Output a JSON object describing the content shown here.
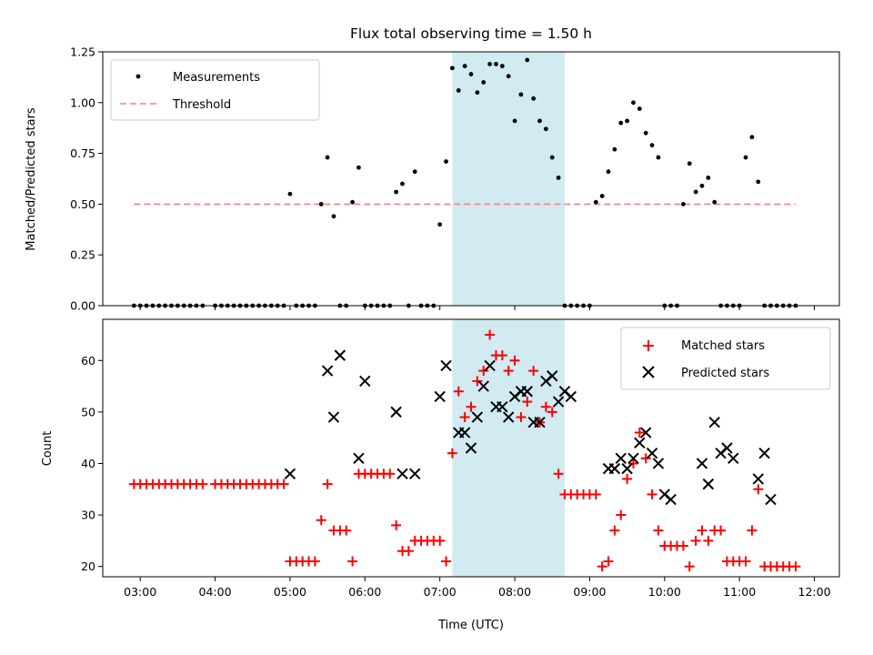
{
  "chart_data": [
    {
      "type": "scatter",
      "title": "Flux total observing time = 1.50 h",
      "xlabel": "",
      "ylabel": "Matched/Predicted stars",
      "ylim": [
        0,
        1.25
      ],
      "yticks": [
        "0.00",
        "0.25",
        "0.50",
        "0.75",
        "1.00",
        "1.25"
      ],
      "legend_position": "top-left",
      "shaded_interval": [
        "07:10",
        "08:40"
      ],
      "shade_color": "#add8e6",
      "threshold": {
        "name": "Threshold",
        "value": 0.5,
        "x_range": [
          "02:55",
          "11:45"
        ],
        "color": "#ff7f7f"
      },
      "series": [
        {
          "name": "Measurements",
          "color": "#000000",
          "x": [
            "02:55",
            "03:00",
            "03:05",
            "03:10",
            "03:15",
            "03:20",
            "03:25",
            "03:30",
            "03:35",
            "03:40",
            "03:45",
            "03:50",
            "04:00",
            "04:05",
            "04:10",
            "04:15",
            "04:20",
            "04:25",
            "04:30",
            "04:35",
            "04:40",
            "04:45",
            "04:50",
            "04:55",
            "05:00",
            "05:05",
            "05:10",
            "05:15",
            "05:20",
            "05:25",
            "05:30",
            "05:35",
            "05:40",
            "05:45",
            "05:50",
            "05:55",
            "06:00",
            "06:05",
            "06:10",
            "06:15",
            "06:20",
            "06:25",
            "06:30",
            "06:35",
            "06:40",
            "06:45",
            "06:50",
            "06:55",
            "07:00",
            "07:05",
            "07:10",
            "07:15",
            "07:20",
            "07:25",
            "07:30",
            "07:35",
            "07:40",
            "07:45",
            "07:50",
            "07:55",
            "08:00",
            "08:05",
            "08:10",
            "08:15",
            "08:20",
            "08:25",
            "08:30",
            "08:35",
            "08:40",
            "08:45",
            "08:50",
            "08:55",
            "09:00",
            "09:05",
            "09:10",
            "09:15",
            "09:20",
            "09:25",
            "09:30",
            "09:35",
            "09:40",
            "09:45",
            "09:50",
            "09:55",
            "10:00",
            "10:05",
            "10:10",
            "10:15",
            "10:20",
            "10:25",
            "10:30",
            "10:35",
            "10:40",
            "10:45",
            "10:50",
            "10:55",
            "11:00",
            "11:05",
            "11:10",
            "11:15",
            "11:20",
            "11:25",
            "11:30",
            "11:35",
            "11:40",
            "11:45"
          ],
          "values": [
            0,
            0,
            0,
            0,
            0,
            0,
            0,
            0,
            0,
            0,
            0,
            0,
            0,
            0,
            0,
            0,
            0,
            0,
            0,
            0,
            0,
            0,
            0,
            0,
            0.55,
            0,
            0,
            0,
            0,
            0.5,
            0.73,
            0.44,
            0,
            0,
            0.51,
            0.68,
            0,
            0,
            0,
            0,
            0,
            0.56,
            0.6,
            0,
            0.66,
            0,
            0,
            0,
            0.4,
            0.71,
            1.17,
            1.06,
            1.18,
            1.14,
            1.05,
            1.1,
            1.19,
            1.19,
            1.18,
            1.13,
            0.91,
            1.04,
            1.21,
            1.02,
            0.91,
            0.87,
            0.73,
            0.63,
            0,
            0,
            0,
            0,
            0,
            0.51,
            0.54,
            0.66,
            0.77,
            0.9,
            0.91,
            1.0,
            0.97,
            0.85,
            0.79,
            0.73,
            0,
            0,
            0,
            0.5,
            0.7,
            0.56,
            0.59,
            0.63,
            0.51,
            0,
            0,
            0,
            0,
            0.73,
            0.83,
            0.61,
            0,
            0,
            0,
            0,
            0,
            0
          ]
        }
      ]
    },
    {
      "type": "scatter",
      "title": "",
      "xlabel": "Time (UTC)",
      "ylabel": "Count",
      "ylim": [
        18,
        68
      ],
      "yticks": [
        "20",
        "30",
        "40",
        "50",
        "60"
      ],
      "xlim": [
        "02:30",
        "12:20"
      ],
      "xticks": [
        "03:00",
        "04:00",
        "05:00",
        "06:00",
        "07:00",
        "08:00",
        "09:00",
        "10:00",
        "11:00",
        "12:00"
      ],
      "legend_position": "top-right",
      "shaded_interval": [
        "07:10",
        "08:40"
      ],
      "series": [
        {
          "name": "Matched stars",
          "color": "#ff0000",
          "marker": "plus",
          "x": [
            "02:55",
            "03:00",
            "03:05",
            "03:10",
            "03:15",
            "03:20",
            "03:25",
            "03:30",
            "03:35",
            "03:40",
            "03:45",
            "03:50",
            "04:00",
            "04:05",
            "04:10",
            "04:15",
            "04:20",
            "04:25",
            "04:30",
            "04:35",
            "04:40",
            "04:45",
            "04:50",
            "04:55",
            "05:00",
            "05:05",
            "05:10",
            "05:15",
            "05:20",
            "05:25",
            "05:30",
            "05:35",
            "05:40",
            "05:45",
            "05:50",
            "05:55",
            "06:00",
            "06:05",
            "06:10",
            "06:15",
            "06:20",
            "06:25",
            "06:30",
            "06:35",
            "06:40",
            "06:45",
            "06:50",
            "06:55",
            "07:00",
            "07:05",
            "07:10",
            "07:15",
            "07:20",
            "07:25",
            "07:30",
            "07:35",
            "07:40",
            "07:45",
            "07:50",
            "07:55",
            "08:00",
            "08:05",
            "08:10",
            "08:15",
            "08:20",
            "08:25",
            "08:30",
            "08:35",
            "08:40",
            "08:45",
            "08:50",
            "08:55",
            "09:00",
            "09:05",
            "09:10",
            "09:15",
            "09:20",
            "09:25",
            "09:30",
            "09:35",
            "09:40",
            "09:45",
            "09:50",
            "09:55",
            "10:00",
            "10:05",
            "10:10",
            "10:15",
            "10:20",
            "10:25",
            "10:30",
            "10:35",
            "10:40",
            "10:45",
            "10:50",
            "10:55",
            "11:00",
            "11:05",
            "11:10",
            "11:15",
            "11:20",
            "11:25",
            "11:30",
            "11:35",
            "11:40",
            "11:45"
          ],
          "values": [
            36,
            36,
            36,
            36,
            36,
            36,
            36,
            36,
            36,
            36,
            36,
            36,
            36,
            36,
            36,
            36,
            36,
            36,
            36,
            36,
            36,
            36,
            36,
            36,
            21,
            21,
            21,
            21,
            21,
            29,
            36,
            27,
            27,
            27,
            21,
            38,
            38,
            38,
            38,
            38,
            38,
            28,
            23,
            23,
            25,
            25,
            25,
            25,
            25,
            21,
            42,
            54,
            49,
            51,
            56,
            58,
            65,
            61,
            61,
            58,
            60,
            49,
            52,
            58,
            48,
            51,
            50,
            38,
            34,
            34,
            34,
            34,
            34,
            34,
            20,
            21,
            27,
            30,
            37,
            40,
            46,
            41,
            34,
            27,
            24,
            24,
            24,
            24,
            20,
            25,
            27,
            25,
            27,
            27,
            21,
            21,
            21,
            21,
            27,
            35,
            20,
            20,
            20,
            20,
            20,
            20
          ]
        },
        {
          "name": "Predicted stars",
          "color": "#000000",
          "marker": "x",
          "x": [
            "05:00",
            "05:30",
            "05:35",
            "05:40",
            "05:55",
            "06:00",
            "06:25",
            "06:30",
            "06:40",
            "07:00",
            "07:05",
            "07:15",
            "07:20",
            "07:25",
            "07:30",
            "07:35",
            "07:40",
            "07:45",
            "07:50",
            "07:55",
            "08:00",
            "08:05",
            "08:10",
            "08:15",
            "08:20",
            "08:25",
            "08:30",
            "08:35",
            "08:40",
            "08:45",
            "09:15",
            "09:20",
            "09:25",
            "09:30",
            "09:35",
            "09:40",
            "09:45",
            "09:50",
            "09:55",
            "10:00",
            "10:05",
            "10:30",
            "10:35",
            "10:40",
            "10:45",
            "10:50",
            "10:55",
            "11:15",
            "11:20",
            "11:25"
          ],
          "values": [
            38,
            58,
            49,
            61,
            41,
            56,
            50,
            38,
            38,
            53,
            59,
            46,
            46,
            43,
            49,
            55,
            59,
            51,
            51,
            49,
            53,
            54,
            54,
            48,
            48,
            56,
            57,
            52,
            54,
            53,
            39,
            39,
            41,
            39,
            41,
            44,
            46,
            42,
            40,
            34,
            33,
            40,
            36,
            48,
            42,
            43,
            41,
            37,
            42,
            33
          ]
        }
      ]
    }
  ]
}
